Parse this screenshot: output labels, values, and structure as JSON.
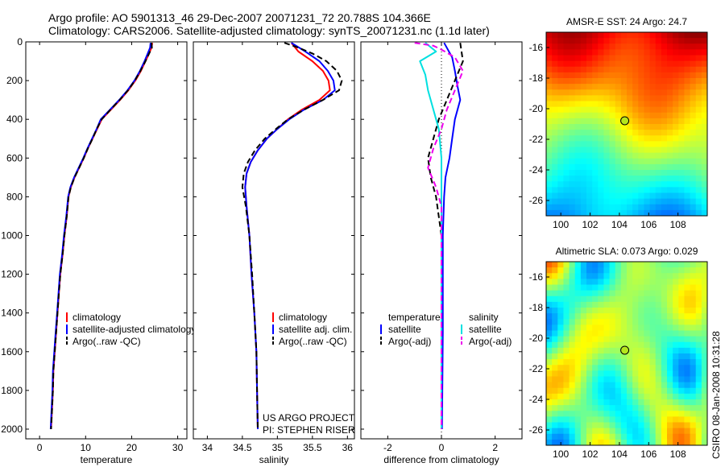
{
  "header": {
    "line1": "Argo profile: AO 5901313_46 29-Dec-2007 20071231_72 20.788S 104.366E",
    "line2": "Climatology: CARS2006. Satellite-adjusted climatology: synTS_20071231.nc (1.1d later)"
  },
  "side_label": "CSIRO 08-Jan-2008 10:31:28",
  "chart_data": [
    {
      "type": "line",
      "panel": "temperature",
      "xlabel": "temperature",
      "ylabel": "",
      "xlim": [
        -3,
        32
      ],
      "ylim": [
        2050,
        0
      ],
      "xticks": [
        0,
        10,
        20,
        30
      ],
      "yticks": [
        0,
        200,
        400,
        600,
        800,
        1000,
        1200,
        1400,
        1600,
        1800,
        2000
      ],
      "legend_position": "lower-right",
      "series": [
        {
          "name": "climatology",
          "color": "#ff0000",
          "dash": "",
          "points": [
            [
              24.5,
              5
            ],
            [
              24.3,
              30
            ],
            [
              23.8,
              60
            ],
            [
              23.0,
              100
            ],
            [
              22.0,
              150
            ],
            [
              20.8,
              200
            ],
            [
              19.3,
              250
            ],
            [
              17.5,
              300
            ],
            [
              15.5,
              350
            ],
            [
              13.5,
              400
            ],
            [
              12.5,
              450
            ],
            [
              11.5,
              500
            ],
            [
              10.5,
              550
            ],
            [
              9.6,
              600
            ],
            [
              8.6,
              650
            ],
            [
              7.6,
              700
            ],
            [
              6.8,
              750
            ],
            [
              6.3,
              800
            ],
            [
              5.9,
              900
            ],
            [
              5.4,
              1000
            ],
            [
              5.0,
              1100
            ],
            [
              4.5,
              1200
            ],
            [
              4.2,
              1300
            ],
            [
              3.9,
              1400
            ],
            [
              3.6,
              1500
            ],
            [
              3.3,
              1600
            ],
            [
              3.0,
              1700
            ],
            [
              2.9,
              1800
            ],
            [
              2.7,
              1900
            ],
            [
              2.5,
              2000
            ]
          ]
        },
        {
          "name": "satellite-adjusted climatology",
          "color": "#0000ff",
          "dash": "",
          "points": [
            [
              24.1,
              5
            ],
            [
              24.0,
              30
            ],
            [
              23.5,
              60
            ],
            [
              22.8,
              100
            ],
            [
              21.8,
              150
            ],
            [
              20.6,
              200
            ],
            [
              19.1,
              250
            ],
            [
              17.3,
              300
            ],
            [
              15.3,
              350
            ],
            [
              13.3,
              400
            ],
            [
              12.4,
              450
            ],
            [
              11.4,
              500
            ],
            [
              10.4,
              550
            ],
            [
              9.5,
              600
            ],
            [
              8.5,
              650
            ],
            [
              7.5,
              700
            ],
            [
              6.7,
              750
            ],
            [
              6.2,
              800
            ],
            [
              5.8,
              900
            ],
            [
              5.3,
              1000
            ],
            [
              4.9,
              1100
            ],
            [
              4.4,
              1200
            ],
            [
              4.1,
              1300
            ],
            [
              3.8,
              1400
            ],
            [
              3.5,
              1500
            ],
            [
              3.2,
              1600
            ],
            [
              2.9,
              1700
            ],
            [
              2.8,
              1800
            ],
            [
              2.6,
              1900
            ],
            [
              2.4,
              2000
            ]
          ]
        },
        {
          "name": "Argo(..raw -QC)",
          "color": "#000000",
          "dash": "7,4",
          "points": [
            [
              24.3,
              5
            ],
            [
              24.4,
              30
            ],
            [
              23.8,
              60
            ],
            [
              23.0,
              100
            ],
            [
              21.9,
              150
            ],
            [
              20.7,
              200
            ],
            [
              19.2,
              250
            ],
            [
              17.4,
              300
            ],
            [
              15.4,
              350
            ],
            [
              13.5,
              400
            ],
            [
              12.4,
              450
            ],
            [
              11.5,
              500
            ],
            [
              10.5,
              550
            ],
            [
              9.6,
              600
            ],
            [
              8.6,
              650
            ],
            [
              7.6,
              700
            ],
            [
              6.8,
              750
            ],
            [
              6.3,
              800
            ],
            [
              5.9,
              900
            ],
            [
              5.4,
              1000
            ],
            [
              5.0,
              1100
            ],
            [
              4.5,
              1200
            ],
            [
              4.2,
              1300
            ],
            [
              3.9,
              1400
            ],
            [
              3.6,
              1500
            ],
            [
              3.3,
              1600
            ],
            [
              3.0,
              1700
            ],
            [
              2.9,
              1800
            ],
            [
              2.7,
              1900
            ],
            [
              2.5,
              2000
            ]
          ]
        }
      ]
    },
    {
      "type": "line",
      "panel": "salinity",
      "xlabel": "salinity",
      "ylabel": "",
      "xlim": [
        33.8,
        36.1
      ],
      "ylim": [
        2050,
        0
      ],
      "xticks": [
        34,
        34.5,
        35,
        35.5,
        36
      ],
      "xticklabels": [
        "34",
        "34.5",
        "35",
        "35.5",
        "36"
      ],
      "yticks": [
        0,
        200,
        400,
        600,
        800,
        1000,
        1200,
        1400,
        1600,
        1800,
        2000
      ],
      "legend_position": "lower-right",
      "annotation_lines": [
        "US ARGO PROJECT",
        "PI: STEPHEN RISER"
      ],
      "series": [
        {
          "name": "climatology",
          "color": "#ff0000",
          "dash": "",
          "points": [
            [
              35.2,
              5
            ],
            [
              35.3,
              50
            ],
            [
              35.5,
              100
            ],
            [
              35.65,
              150
            ],
            [
              35.73,
              200
            ],
            [
              35.75,
              250
            ],
            [
              35.6,
              300
            ],
            [
              35.35,
              350
            ],
            [
              35.15,
              400
            ],
            [
              35.0,
              450
            ],
            [
              34.85,
              500
            ],
            [
              34.72,
              560
            ],
            [
              34.62,
              620
            ],
            [
              34.56,
              680
            ],
            [
              34.54,
              750
            ],
            [
              34.56,
              850
            ],
            [
              34.6,
              1000
            ],
            [
              34.63,
              1200
            ],
            [
              34.67,
              1400
            ],
            [
              34.7,
              1600
            ],
            [
              34.71,
              1800
            ],
            [
              34.72,
              2000
            ]
          ]
        },
        {
          "name": "satellite adj. clim.",
          "color": "#0000ff",
          "dash": "",
          "points": [
            [
              35.2,
              5
            ],
            [
              35.4,
              50
            ],
            [
              35.6,
              100
            ],
            [
              35.72,
              150
            ],
            [
              35.8,
              200
            ],
            [
              35.82,
              250
            ],
            [
              35.65,
              300
            ],
            [
              35.38,
              350
            ],
            [
              35.17,
              400
            ],
            [
              35.0,
              450
            ],
            [
              34.85,
              500
            ],
            [
              34.72,
              560
            ],
            [
              34.62,
              620
            ],
            [
              34.56,
              680
            ],
            [
              34.54,
              750
            ],
            [
              34.56,
              850
            ],
            [
              34.6,
              1000
            ],
            [
              34.63,
              1200
            ],
            [
              34.67,
              1400
            ],
            [
              34.7,
              1600
            ],
            [
              34.71,
              1800
            ],
            [
              34.72,
              2000
            ]
          ]
        },
        {
          "name": "Argo(..raw -QC)",
          "color": "#000000",
          "dash": "7,4",
          "points": [
            [
              35.1,
              5
            ],
            [
              35.3,
              30
            ],
            [
              35.5,
              60
            ],
            [
              35.7,
              100
            ],
            [
              35.85,
              150
            ],
            [
              35.92,
              200
            ],
            [
              35.88,
              250
            ],
            [
              35.65,
              300
            ],
            [
              35.38,
              350
            ],
            [
              35.15,
              400
            ],
            [
              34.98,
              450
            ],
            [
              34.82,
              500
            ],
            [
              34.68,
              560
            ],
            [
              34.58,
              620
            ],
            [
              34.52,
              680
            ],
            [
              34.5,
              750
            ],
            [
              34.55,
              850
            ],
            [
              34.6,
              1000
            ],
            [
              34.64,
              1200
            ],
            [
              34.67,
              1400
            ],
            [
              34.7,
              1600
            ],
            [
              34.71,
              1800
            ],
            [
              34.72,
              2000
            ]
          ]
        }
      ]
    },
    {
      "type": "line",
      "panel": "difference",
      "xlabel": "difference from climatology",
      "ylabel": "",
      "xlim": [
        -3,
        3
      ],
      "ylim": [
        2050,
        0
      ],
      "xticks": [
        -2,
        0,
        2
      ],
      "yticks": [
        0,
        200,
        400,
        600,
        800,
        1000,
        1200,
        1400,
        1600,
        1800,
        2000
      ],
      "legend_position": "lower",
      "legend_group_titles": [
        "temperature",
        "salinity"
      ],
      "series": [
        {
          "name": "satellite",
          "group": "temperature",
          "color": "#0000ff",
          "dash": "",
          "points": [
            [
              0.1,
              5
            ],
            [
              0.4,
              80
            ],
            [
              0.5,
              150
            ],
            [
              0.6,
              230
            ],
            [
              0.7,
              300
            ],
            [
              0.5,
              400
            ],
            [
              0.4,
              500
            ],
            [
              0.3,
              600
            ],
            [
              0.15,
              700
            ],
            [
              0.1,
              800
            ],
            [
              0.05,
              1000
            ],
            [
              0.05,
              1500
            ],
            [
              0.02,
              2000
            ]
          ]
        },
        {
          "name": "Argo(-adj)",
          "group": "temperature",
          "color": "#000000",
          "dash": "7,4",
          "points": [
            [
              0.7,
              5
            ],
            [
              0.8,
              100
            ],
            [
              0.5,
              200
            ],
            [
              0.2,
              300
            ],
            [
              -0.1,
              400
            ],
            [
              -0.3,
              500
            ],
            [
              -0.5,
              600
            ],
            [
              -0.4,
              700
            ],
            [
              -0.2,
              800
            ],
            [
              0.0,
              1000
            ],
            [
              0.0,
              1500
            ],
            [
              0.0,
              2000
            ]
          ]
        },
        {
          "name": "satellite",
          "group": "salinity",
          "color": "#00e0e0",
          "dash": "",
          "points": [
            [
              -0.6,
              5
            ],
            [
              -0.2,
              50
            ],
            [
              -0.8,
              100
            ],
            [
              -0.6,
              170
            ],
            [
              -0.5,
              250
            ],
            [
              -0.3,
              350
            ],
            [
              -0.1,
              450
            ],
            [
              0.0,
              600
            ],
            [
              0.0,
              800
            ],
            [
              0.0,
              1200
            ],
            [
              0.0,
              2000
            ]
          ]
        },
        {
          "name": "Argo(-adj)",
          "group": "salinity",
          "color": "#ee00ee",
          "dash": "7,4",
          "points": [
            [
              -1.0,
              5
            ],
            [
              -0.3,
              20
            ],
            [
              0.0,
              40
            ],
            [
              0.5,
              80
            ],
            [
              0.8,
              150
            ],
            [
              0.5,
              250
            ],
            [
              0.2,
              350
            ],
            [
              0.0,
              450
            ],
            [
              -0.3,
              550
            ],
            [
              -0.5,
              650
            ],
            [
              -0.2,
              750
            ],
            [
              0.0,
              850
            ],
            [
              0.0,
              2000
            ]
          ]
        }
      ]
    },
    {
      "type": "heatmap",
      "panel": "sst-map",
      "title": "AMSR-E SST: 24 Argo: 24.7",
      "xlim": [
        99,
        110
      ],
      "ylim": [
        -27,
        -15
      ],
      "xticks": [
        100,
        102,
        104,
        106,
        108
      ],
      "yticks": [
        -16,
        -18,
        -20,
        -22,
        -24,
        -26
      ],
      "marker": {
        "lon": 104.366,
        "lat": -20.788
      }
    },
    {
      "type": "heatmap",
      "panel": "sla-map",
      "title": "Altimetric SLA: 0.073 Argo: 0.029",
      "xlim": [
        99,
        110
      ],
      "ylim": [
        -27,
        -15
      ],
      "xticks": [
        100,
        102,
        104,
        106,
        108
      ],
      "yticks": [
        -16,
        -18,
        -20,
        -22,
        -24,
        -26
      ],
      "marker": {
        "lon": 104.366,
        "lat": -20.788
      }
    }
  ]
}
